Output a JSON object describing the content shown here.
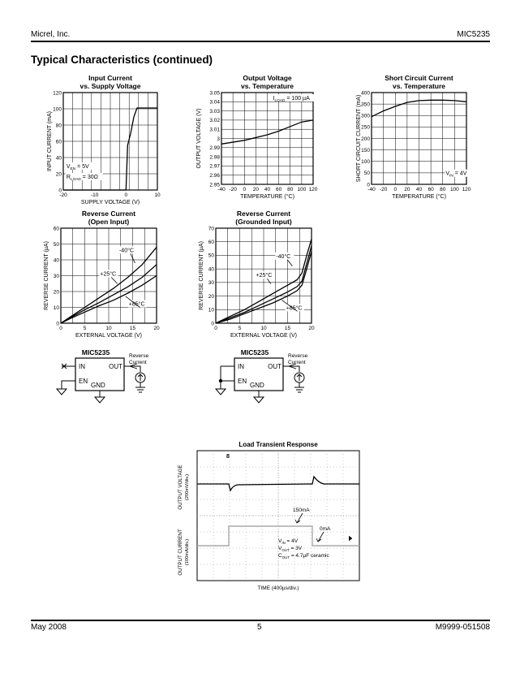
{
  "header": {
    "left": "Micrel, Inc.",
    "right": "MIC5235"
  },
  "section_title": "Typical Characteristics (continued)",
  "footer": {
    "left": "May 2008",
    "center": "5",
    "right": "M9999-051508"
  },
  "chart_data": [
    {
      "id": "input-current",
      "type": "line",
      "title": [
        "Input Current",
        "vs. Supply Voltage"
      ],
      "xlabel": "SUPPLY VOLTAGE (V)",
      "ylabel": "INPUT CURRENT (mA)",
      "xlim": [
        -20,
        10
      ],
      "ylim": [
        0,
        120
      ],
      "xticks": [
        -20,
        -10,
        0,
        10
      ],
      "yticks": [
        0,
        20,
        40,
        60,
        80,
        100,
        120
      ],
      "xtick_labels": [
        "-20",
        "-10",
        "0",
        "10"
      ],
      "ytick_labels": [
        "0",
        "20",
        "40",
        "60",
        "80",
        "100",
        "120"
      ],
      "xgrid": 10,
      "ygrid": 6,
      "annotations": [
        {
          "parts": [
            [
              "V"
            ],
            [
              "EN",
              "sub"
            ],
            [
              " = 5V"
            ]
          ],
          "at": [
            -19,
            27
          ]
        },
        {
          "parts": [
            [
              "R"
            ],
            [
              "LOAD",
              "sub"
            ],
            [
              " = 30Ω"
            ]
          ],
          "at": [
            -19,
            14
          ]
        }
      ],
      "series": [
        {
          "points": [
            [
              -20,
              0
            ],
            [
              0,
              0
            ],
            [
              0.5,
              55
            ],
            [
              1.5,
              70
            ],
            [
              2.5,
              90
            ],
            [
              3.5,
              101
            ],
            [
              10,
              101
            ]
          ]
        }
      ]
    },
    {
      "id": "output-voltage",
      "type": "line",
      "title": [
        "Output Voltage",
        "vs. Temperature"
      ],
      "xlabel": "TEMPERATURE (°C)",
      "ylabel": "OUTPUT VOLTAGE (V)",
      "xlim": [
        -40,
        120
      ],
      "ylim": [
        2.95,
        3.05
      ],
      "xticks": [
        -40,
        -20,
        0,
        20,
        40,
        60,
        80,
        100,
        120
      ],
      "xtick_labels": [
        "-40",
        "-20",
        "0",
        "20",
        "40",
        "60",
        "80",
        "100",
        "120"
      ],
      "yticks": [
        2.95,
        2.96,
        2.97,
        2.98,
        2.99,
        3.0,
        3.01,
        3.02,
        3.03,
        3.04,
        3.05
      ],
      "ytick_labels": [
        "2.95",
        "2.96",
        "2.97",
        "2.98",
        "2.99",
        "3",
        "3.01",
        "3.02",
        "3.03",
        "3.04",
        "3.05"
      ],
      "xgrid": 8,
      "ygrid": 10,
      "annotations": [
        {
          "parts": [
            [
              "I"
            ],
            [
              "LOAD",
              "sub"
            ],
            [
              " = 100 µA"
            ]
          ],
          "at": [
            50,
            3.042
          ]
        }
      ],
      "series": [
        {
          "points": [
            [
              -40,
              2.994
            ],
            [
              0,
              2.998
            ],
            [
              40,
              3.004
            ],
            [
              60,
              3.008
            ],
            [
              80,
              3.013
            ],
            [
              100,
              3.018
            ],
            [
              120,
              3.02
            ]
          ]
        }
      ]
    },
    {
      "id": "short-circuit",
      "type": "line",
      "title": [
        "Short Circuit Current",
        "vs. Temperature"
      ],
      "xlabel": "TEMPERATURE (°C)",
      "ylabel": "SHORT CIRCUIT CURRENT (mA)",
      "xlim": [
        -40,
        120
      ],
      "ylim": [
        0,
        400
      ],
      "xticks": [
        -40,
        -20,
        0,
        20,
        40,
        60,
        80,
        100,
        120
      ],
      "xtick_labels": [
        "-40",
        "-20",
        "0",
        "20",
        "40",
        "60",
        "80",
        "100",
        "120"
      ],
      "yticks": [
        0,
        50,
        100,
        150,
        200,
        250,
        300,
        350,
        400
      ],
      "ytick_labels": [
        "0",
        "50",
        "100",
        "150",
        "200",
        "250",
        "300",
        "350",
        "400"
      ],
      "xgrid": 8,
      "ygrid": 8,
      "annotations": [
        {
          "parts": [
            [
              "V"
            ],
            [
              "IN",
              "sub"
            ],
            [
              " = 4V"
            ]
          ],
          "at": [
            85,
            40
          ]
        }
      ],
      "series": [
        {
          "points": [
            [
              -40,
              295
            ],
            [
              -20,
              320
            ],
            [
              0,
              340
            ],
            [
              20,
              357
            ],
            [
              40,
              365
            ],
            [
              60,
              367
            ],
            [
              80,
              367
            ],
            [
              100,
              365
            ],
            [
              120,
              360
            ]
          ]
        }
      ]
    },
    {
      "id": "reverse-open",
      "type": "line",
      "title": [
        "Reverse Current",
        "(Open Input)"
      ],
      "xlabel": "EXTERNAL VOLTAGE (V)",
      "ylabel": "REVERSE CURRENT (µA)",
      "xlim": [
        0,
        20
      ],
      "ylim": [
        0,
        60
      ],
      "xticks": [
        0,
        5,
        10,
        15,
        20
      ],
      "xtick_labels": [
        "0",
        "5",
        "10",
        "15",
        "20"
      ],
      "yticks": [
        0,
        10,
        20,
        30,
        40,
        50,
        60
      ],
      "ytick_labels": [
        "0",
        "10",
        "20",
        "30",
        "40",
        "50",
        "60"
      ],
      "xgrid": 8,
      "ygrid": 6,
      "annotations": [
        {
          "parts": [
            [
              "-40°C"
            ]
          ],
          "at": [
            12.2,
            45
          ],
          "pointer": [
            15.5,
            38
          ]
        },
        {
          "parts": [
            [
              "+25°C"
            ]
          ],
          "at": [
            8.2,
            30
          ],
          "pointer": [
            11.8,
            25
          ]
        },
        {
          "parts": [
            [
              "+85°C"
            ]
          ],
          "at": [
            14.2,
            11
          ],
          "pointer": [
            13.5,
            17
          ]
        }
      ],
      "series": [
        {
          "points": [
            [
              0,
              0
            ],
            [
              2,
              4
            ],
            [
              5,
              10
            ],
            [
              8,
              16
            ],
            [
              11,
              22
            ],
            [
              14,
              29
            ],
            [
              17,
              37
            ],
            [
              20,
              48
            ]
          ]
        },
        {
          "points": [
            [
              0,
              0
            ],
            [
              2,
              3.5
            ],
            [
              5,
              8.5
            ],
            [
              8,
              13
            ],
            [
              11,
              18
            ],
            [
              14,
              23
            ],
            [
              17,
              29
            ],
            [
              20,
              37
            ]
          ]
        },
        {
          "points": [
            [
              0,
              0
            ],
            [
              2,
              3
            ],
            [
              5,
              7
            ],
            [
              8,
              11
            ],
            [
              11,
              14.5
            ],
            [
              14,
              19
            ],
            [
              17,
              24
            ],
            [
              20,
              30
            ]
          ]
        }
      ]
    },
    {
      "id": "reverse-grounded",
      "type": "line",
      "title": [
        "Reverse Current",
        "(Grounded Input)"
      ],
      "xlabel": "EXTERNAL VOLTAGE (V)",
      "ylabel": "REVERSE CURRENT (µA)",
      "xlim": [
        0,
        20
      ],
      "ylim": [
        0,
        70
      ],
      "xticks": [
        0,
        5,
        10,
        15,
        20
      ],
      "xtick_labels": [
        "0",
        "5",
        "10",
        "15",
        "20"
      ],
      "yticks": [
        0,
        10,
        20,
        30,
        40,
        50,
        60,
        70
      ],
      "ytick_labels": [
        "0",
        "10",
        "20",
        "30",
        "40",
        "50",
        "60",
        "70"
      ],
      "xgrid": 8,
      "ygrid": 7,
      "annotations": [
        {
          "parts": [
            [
              "-40°C"
            ]
          ],
          "at": [
            12.6,
            48
          ],
          "pointer": [
            16,
            42
          ]
        },
        {
          "parts": [
            [
              "+25°C"
            ]
          ],
          "at": [
            8.4,
            34
          ],
          "pointer": [
            11.5,
            29
          ]
        },
        {
          "parts": [
            [
              "+85°C"
            ]
          ],
          "at": [
            14.7,
            10
          ],
          "pointer": [
            13.8,
            17
          ]
        }
      ],
      "series": [
        {
          "points": [
            [
              0,
              0
            ],
            [
              3,
              5
            ],
            [
              6,
              10
            ],
            [
              9,
              16
            ],
            [
              12,
              22
            ],
            [
              15,
              28
            ],
            [
              17,
              32
            ],
            [
              18,
              37
            ],
            [
              19,
              50
            ],
            [
              20,
              62
            ]
          ]
        },
        {
          "points": [
            [
              0,
              0
            ],
            [
              3,
              4
            ],
            [
              6,
              8
            ],
            [
              9,
              13
            ],
            [
              12,
              18
            ],
            [
              15,
              23
            ],
            [
              17,
              27
            ],
            [
              18,
              31
            ],
            [
              19,
              44
            ],
            [
              20,
              57
            ]
          ]
        },
        {
          "points": [
            [
              0,
              0
            ],
            [
              3,
              3
            ],
            [
              6,
              7
            ],
            [
              9,
              11
            ],
            [
              12,
              15
            ],
            [
              15,
              20
            ],
            [
              17,
              24
            ],
            [
              18,
              28
            ],
            [
              19,
              40
            ],
            [
              20,
              53
            ]
          ]
        }
      ]
    }
  ],
  "circuits": [
    {
      "id": "open",
      "chip": "MIC5235",
      "in": "IN",
      "out": "OUT",
      "en": "EN",
      "gnd": "GND",
      "note": [
        "Reverse",
        "Current"
      ]
    },
    {
      "id": "grounded",
      "chip": "MIC5235",
      "in": "IN",
      "out": "OUT",
      "en": "EN",
      "gnd": "GND",
      "note": [
        "Reverse",
        "Current"
      ]
    }
  ],
  "scope": {
    "title": "Load Transient Response",
    "channel_marker": "8",
    "ylabel_top": "OUTPUT VOLTAGE",
    "ylabel_top_sub": "(200mV/div.)",
    "ylabel_bottom": "OUTPUT CURRENT",
    "ylabel_bottom_sub": "(100mA/div.)",
    "xlabel": "TIME (400µs/div.)",
    "label_high": "150mA",
    "label_low": "0mA",
    "cond": [
      [
        [
          "V"
        ],
        [
          "IN",
          "sub"
        ],
        [
          " = 4V"
        ]
      ],
      [
        [
          "V"
        ],
        [
          "OUT",
          "sub"
        ],
        [
          " = 3V"
        ]
      ],
      [
        [
          "C"
        ],
        [
          "OUT",
          "sub"
        ],
        [
          " = 4.7µF ceramic"
        ]
      ]
    ]
  }
}
